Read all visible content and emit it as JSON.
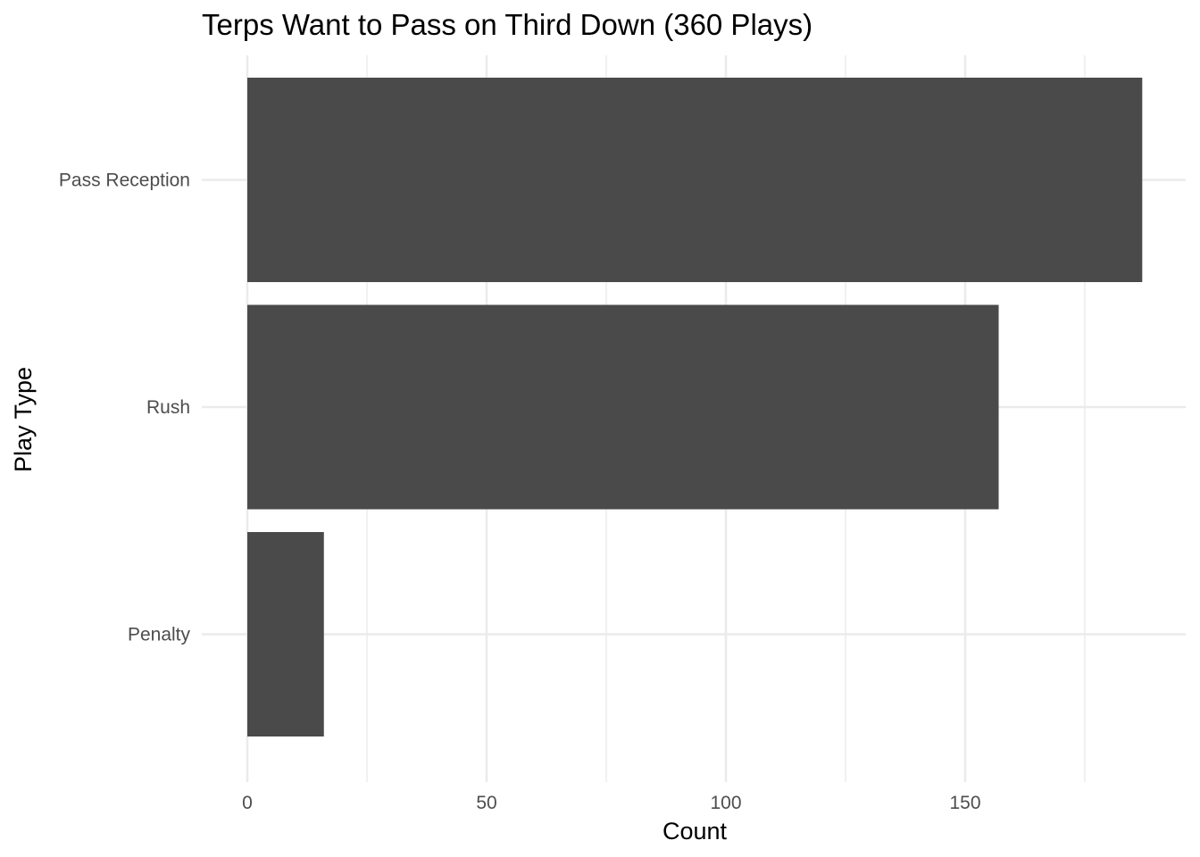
{
  "chart_data": {
    "type": "bar",
    "orientation": "horizontal",
    "title": "Terps Want to Pass on Third Down (360 Plays)",
    "xlabel": "Count",
    "ylabel": "Play Type",
    "categories": [
      "Pass Reception",
      "Rush",
      "Penalty"
    ],
    "values": [
      187,
      157,
      16
    ],
    "xlim": [
      0,
      195
    ],
    "x_ticks": [
      0,
      50,
      100,
      150
    ],
    "x_minor_ticks": [
      25,
      75,
      125,
      175
    ],
    "grid": true,
    "legend": "none",
    "colors": {
      "bar": "#4a4a4a",
      "grid_major": "#ebebeb",
      "grid_minor": "#ebebeb",
      "background": "#ffffff",
      "tick_text": "#4d4d4d",
      "title_text": "#000000"
    }
  }
}
